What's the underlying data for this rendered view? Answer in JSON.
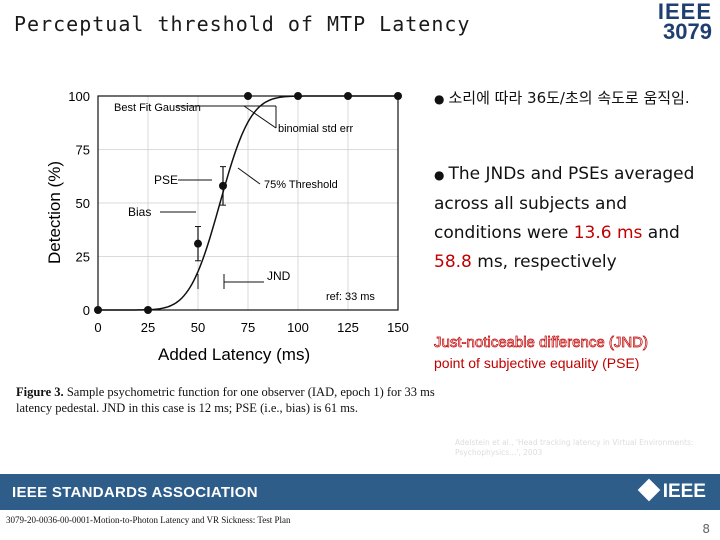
{
  "slide": {
    "title": "Perceptual threshold of MTP Latency",
    "logo_line1": "IEEE",
    "logo_line2": "3079",
    "bullet_ko": "소리에 따라 36도/초의 속도로 움직임.",
    "bullet_en_part1": "The JNDs and PSEs averaged across all subjects and conditions were ",
    "bullet_en_value1": "13.6 ms",
    "bullet_en_part2": " and ",
    "bullet_en_value2": "58.8",
    "bullet_en_part3": " ms, respectively",
    "jnd_definition": "Just-noticeable difference (JND)",
    "pse_definition": "point of subjective equality (PSE)",
    "reference_note": "Adelstein et al., 'Head tracking latency in Virtual Environments: Psychophysics...', 2003",
    "footer_association": "IEEE STANDARDS ASSOCIATION",
    "footer_ieee": "IEEE",
    "doc_id": "3079-20-0036-00-0001-Motion-to-Photon Latency and VR Sickness: Test Plan",
    "page_number": "8"
  },
  "caption": {
    "label": "Figure 3.",
    "text": " Sample psychometric function for one observer (IAD, epoch 1) for 33 ms latency pedestal. JND in this case is 12 ms; PSE (i.e., bias) is 61 ms."
  },
  "chart_data": {
    "type": "scatter",
    "xlabel": "Added Latency (ms)",
    "ylabel": "Detection (%)",
    "xlim": [
      0,
      150
    ],
    "ylim": [
      0,
      100
    ],
    "x_ticks": [
      0,
      25,
      50,
      75,
      100,
      125,
      150
    ],
    "y_ticks": [
      0,
      25,
      50,
      75,
      100
    ],
    "grid": true,
    "series": [
      {
        "name": "Best Fit Gaussian",
        "kind": "curve",
        "mean": 61,
        "sd": 12
      },
      {
        "kind": "points",
        "x": [
          0,
          25,
          50,
          62.5,
          75,
          100,
          125,
          150
        ],
        "y": [
          0,
          0,
          31,
          58,
          100,
          100,
          100,
          100
        ],
        "errors": [
          0,
          0,
          8,
          9,
          0,
          0,
          0,
          0
        ]
      }
    ],
    "annotations": [
      {
        "text": "Best Fit Gaussian"
      },
      {
        "text": "binomial std err"
      },
      {
        "text": "PSE"
      },
      {
        "text": "75% Threshold"
      },
      {
        "text": "Bias"
      },
      {
        "text": "JND"
      },
      {
        "text": "ref: 33 ms"
      }
    ]
  }
}
